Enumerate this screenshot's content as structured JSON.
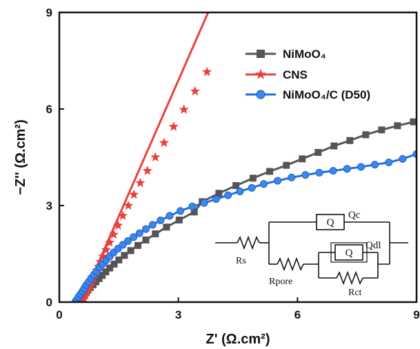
{
  "chart_data": {
    "type": "scatter",
    "xlabel": "Z' (Ω.cm²)",
    "ylabel": "−Z'' (Ω.cm²)",
    "xlim": [
      0,
      9
    ],
    "ylim": [
      0,
      9
    ],
    "xticks": [
      "0",
      "3",
      "6",
      "9"
    ],
    "yticks": [
      "0",
      "3",
      "6",
      "9"
    ],
    "grid": false,
    "legend_position": "top-right",
    "series": [
      {
        "name": "NiMoO₄",
        "color": "#555555",
        "marker": "square",
        "x": [
          0.42,
          0.48,
          0.54,
          0.6,
          0.66,
          0.72,
          0.78,
          0.85,
          0.92,
          1.0,
          1.08,
          1.17,
          1.27,
          1.38,
          1.5,
          1.64,
          1.8,
          1.98,
          2.18,
          2.42,
          2.7,
          3.02,
          3.4,
          3.6,
          4.02,
          4.45,
          4.88,
          5.3,
          5.72,
          6.12,
          6.52,
          6.92,
          7.32,
          7.72,
          8.12,
          8.52,
          8.92
        ],
        "y": [
          0.0,
          0.06,
          0.13,
          0.21,
          0.29,
          0.37,
          0.45,
          0.54,
          0.63,
          0.73,
          0.83,
          0.94,
          1.06,
          1.18,
          1.31,
          1.45,
          1.6,
          1.76,
          1.93,
          2.12,
          2.33,
          2.55,
          2.8,
          3.12,
          3.38,
          3.62,
          3.85,
          4.06,
          4.25,
          4.45,
          4.65,
          4.85,
          5.02,
          5.2,
          5.35,
          5.48,
          5.6
        ]
      },
      {
        "name": "CNS",
        "color": "#e8413c",
        "marker": "star",
        "x": [
          0.58,
          0.62,
          0.66,
          0.7,
          0.74,
          0.78,
          0.82,
          0.86,
          0.9,
          0.94,
          0.99,
          1.04,
          1.1,
          1.18,
          1.27,
          1.37,
          1.48,
          1.6,
          1.74,
          1.88,
          2.04,
          2.22,
          2.42,
          2.64,
          2.88,
          3.14,
          3.42,
          3.72
        ],
        "y": [
          0.04,
          0.12,
          0.2,
          0.3,
          0.4,
          0.5,
          0.62,
          0.74,
          0.86,
          0.98,
          1.1,
          1.25,
          1.42,
          1.62,
          1.85,
          2.1,
          2.38,
          2.68,
          3.0,
          3.34,
          3.7,
          4.08,
          4.5,
          4.95,
          5.45,
          5.98,
          6.55,
          7.15
        ],
        "line_x": [
          0.55,
          3.75
        ],
        "line_y": [
          0.0,
          9.0
        ]
      },
      {
        "name": "NiMoO₄/C (D50)",
        "color": "#1f6fe0",
        "marker": "circle",
        "x": [
          0.4,
          0.44,
          0.48,
          0.53,
          0.58,
          0.63,
          0.68,
          0.74,
          0.8,
          0.87,
          0.94,
          1.01,
          1.09,
          1.18,
          1.27,
          1.37,
          1.48,
          1.6,
          1.73,
          1.87,
          2.02,
          2.18,
          2.35,
          2.55,
          2.78,
          3.05,
          3.35,
          3.65,
          3.95,
          4.25,
          4.55,
          4.85,
          5.15,
          5.5,
          5.85,
          6.2,
          6.55,
          6.9,
          7.25,
          7.6,
          7.95,
          8.3,
          8.65,
          9.0
        ],
        "y": [
          0.0,
          0.07,
          0.15,
          0.24,
          0.33,
          0.43,
          0.53,
          0.63,
          0.74,
          0.85,
          0.96,
          1.07,
          1.18,
          1.3,
          1.42,
          1.54,
          1.66,
          1.78,
          1.9,
          2.02,
          2.14,
          2.27,
          2.4,
          2.54,
          2.68,
          2.83,
          2.97,
          3.08,
          3.2,
          3.32,
          3.44,
          3.55,
          3.67,
          3.77,
          3.87,
          3.95,
          4.02,
          4.08,
          4.14,
          4.2,
          4.27,
          4.34,
          4.45,
          4.6
        ]
      }
    ],
    "inset": {
      "labels": {
        "rs": "Rs",
        "rpore": "Rpore",
        "rct": "Rct",
        "q": "Q",
        "qc": "Qc",
        "qdl": "Qdl"
      }
    }
  }
}
